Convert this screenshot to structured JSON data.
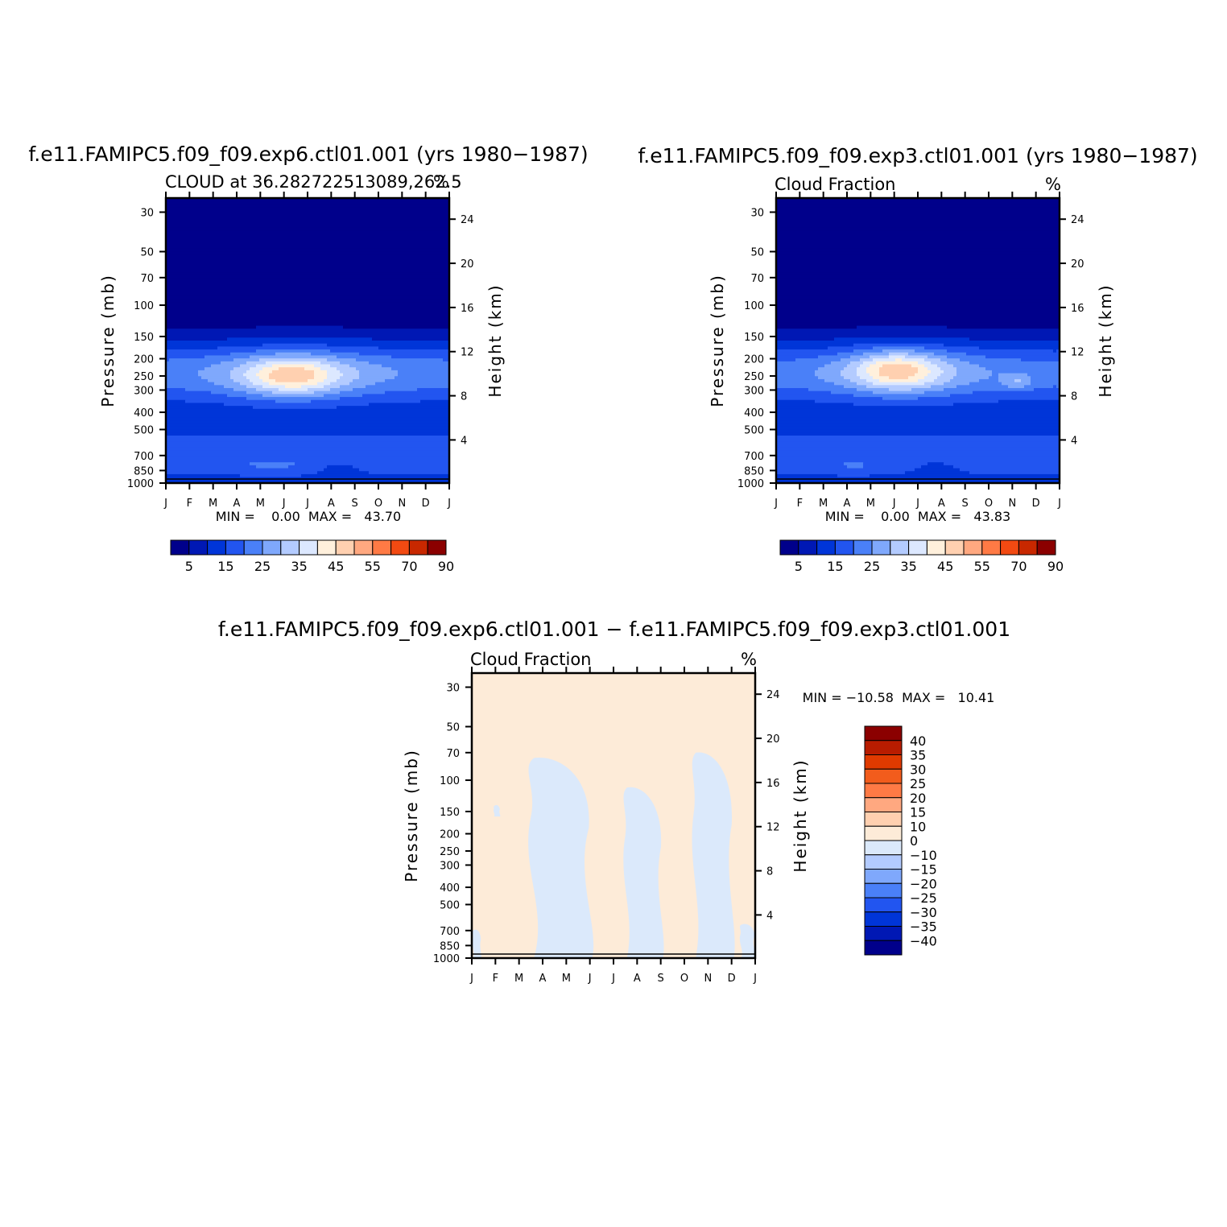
{
  "chart_data": [
    {
      "type": "heatmap",
      "title": "f.e11.FAMIPC5.f09_f09.exp6.ctl01.001 (yrs 1980−1987)",
      "subtitle": "CLOUD at 36.282722513089,262.5",
      "units": "%",
      "ylabel": "Pressure (mb)",
      "y2label": "Height (km)",
      "x": [
        "J",
        "F",
        "M",
        "A",
        "M",
        "J",
        "J",
        "A",
        "S",
        "O",
        "N",
        "D",
        "J"
      ],
      "pressure_ticks": [
        30,
        50,
        70,
        100,
        150,
        200,
        250,
        300,
        400,
        500,
        700,
        850,
        1000
      ],
      "height_ticks": [
        24,
        20,
        16,
        12,
        8,
        4
      ],
      "ylim": [
        1000,
        25
      ],
      "stats": "MIN =    0.00  MAX =   43.70",
      "colorbar": {
        "labels": [
          "5",
          "15",
          "25",
          "35",
          "45",
          "55",
          "70",
          "90"
        ],
        "colors": [
          "#00008b",
          "#0018b4",
          "#0035d8",
          "#2255f0",
          "#4a80f8",
          "#7fa8fc",
          "#b3cbff",
          "#dce8ff",
          "#fff0dc",
          "#ffd0b0",
          "#ffa880",
          "#ff7a45",
          "#f24a12",
          "#c82800",
          "#8b0000"
        ]
      },
      "blobs": [
        {
          "m": 6.0,
          "p": 240,
          "dm": 5.6,
          "dl": 0.38,
          "v": 4
        },
        {
          "m": 5.4,
          "p": 250,
          "dm": 2.6,
          "dl": 0.3,
          "v": 12
        },
        {
          "m": 5.3,
          "p": 250,
          "dm": 1.8,
          "dl": 0.22,
          "v": 12
        },
        {
          "m": 4.5,
          "p": 800,
          "dm": 2.0,
          "dl": 0.1,
          "v": 4
        },
        {
          "m": 7.3,
          "p": 850,
          "dm": 0.8,
          "dl": 0.12,
          "v": -4
        }
      ]
    },
    {
      "type": "heatmap",
      "title": "f.e11.FAMIPC5.f09_f09.exp3.ctl01.001 (yrs 1980−1987)",
      "subtitle": "Cloud Fraction",
      "units": "%",
      "ylabel": "Pressure (mb)",
      "y2label": "Height (km)",
      "x": [
        "J",
        "F",
        "M",
        "A",
        "M",
        "J",
        "J",
        "A",
        "S",
        "O",
        "N",
        "D",
        "J"
      ],
      "pressure_ticks": [
        30,
        50,
        70,
        100,
        150,
        200,
        250,
        300,
        400,
        500,
        700,
        850,
        1000
      ],
      "height_ticks": [
        24,
        20,
        16,
        12,
        8,
        4
      ],
      "ylim": [
        1000,
        25
      ],
      "stats": "MIN =    0.00  MAX =   43.83",
      "colorbar": {
        "labels": [
          "5",
          "15",
          "25",
          "35",
          "45",
          "55",
          "70",
          "90"
        ],
        "colors": [
          "#00008b",
          "#0018b4",
          "#0035d8",
          "#2255f0",
          "#4a80f8",
          "#7fa8fc",
          "#b3cbff",
          "#dce8ff",
          "#fff0dc",
          "#ffd0b0",
          "#ffa880",
          "#ff7a45",
          "#f24a12",
          "#c82800",
          "#8b0000"
        ]
      },
      "blobs": [
        {
          "m": 5.8,
          "p": 240,
          "dm": 4.4,
          "dl": 0.36,
          "v": 4
        },
        {
          "m": 5.2,
          "p": 235,
          "dm": 2.4,
          "dl": 0.3,
          "v": 12
        },
        {
          "m": 5.1,
          "p": 230,
          "dm": 1.6,
          "dl": 0.22,
          "v": 12
        },
        {
          "m": 10.2,
          "p": 270,
          "dm": 0.6,
          "dl": 0.1,
          "v": 8
        },
        {
          "m": 3.3,
          "p": 800,
          "dm": 1.0,
          "dl": 0.1,
          "v": 4
        },
        {
          "m": 6.8,
          "p": 850,
          "dm": 0.8,
          "dl": 0.12,
          "v": -4
        }
      ]
    },
    {
      "type": "heatmap",
      "title": "f.e11.FAMIPC5.f09_f09.exp6.ctl01.001 − f.e11.FAMIPC5.f09_f09.exp3.ctl01.001",
      "subtitle": "Cloud Fraction",
      "units": "%",
      "ylabel": "Pressure (mb)",
      "y2label": "Height (km)",
      "x": [
        "J",
        "F",
        "M",
        "A",
        "M",
        "J",
        "J",
        "A",
        "S",
        "O",
        "N",
        "D",
        "J"
      ],
      "pressure_ticks": [
        30,
        50,
        70,
        100,
        150,
        200,
        250,
        300,
        400,
        500,
        700,
        850,
        1000
      ],
      "height_ticks": [
        24,
        20,
        16,
        12,
        8,
        4
      ],
      "ylim": [
        1000,
        25
      ],
      "stats": "MIN = −10.58  MAX =   10.41",
      "colorbar": {
        "labels": [
          "40",
          "35",
          "30",
          "25",
          "20",
          "15",
          "10",
          "0",
          "−10",
          "−15",
          "−20",
          "−25",
          "−30",
          "−35",
          "−40"
        ],
        "colors": [
          "#8b0000",
          "#b81c00",
          "#e03a00",
          "#f25c1c",
          "#ff7a45",
          "#ffa880",
          "#ffd0b0",
          "#fdebd8",
          "#dbe9fb",
          "#b3cbff",
          "#7fa8fc",
          "#4a80f8",
          "#2255f0",
          "#0035d8",
          "#0018b4",
          "#00008b"
        ]
      },
      "neg_bands": [
        [
          0.9,
          1.2,
          140,
          160
        ],
        [
          2.2,
          5.1,
          75,
          1000
        ],
        [
          6.3,
          8.1,
          110,
          1000
        ],
        [
          9.2,
          11.1,
          70,
          1000
        ],
        [
          11.3,
          12.0,
          650,
          1000
        ],
        [
          0.0,
          0.4,
          700,
          1000
        ]
      ]
    }
  ]
}
